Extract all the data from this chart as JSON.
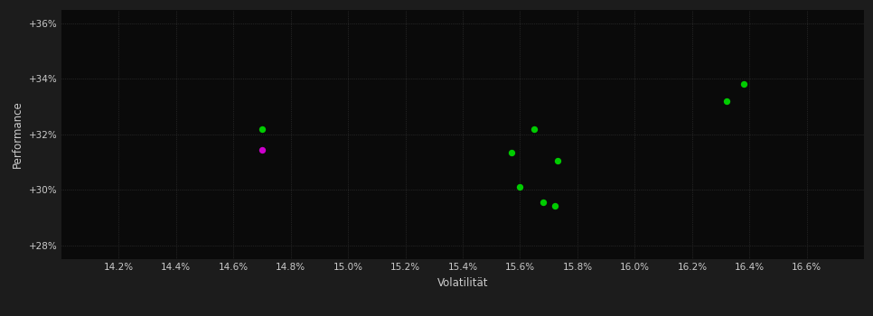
{
  "background_color": "#1c1c1c",
  "plot_bg_color": "#0a0a0a",
  "grid_color": "#3a3a3a",
  "text_color": "#cccccc",
  "xlabel": "Volatilität",
  "ylabel": "Performance",
  "xlim": [
    14.0,
    16.8
  ],
  "ylim": [
    27.5,
    36.5
  ],
  "xticks": [
    14.2,
    14.4,
    14.6,
    14.8,
    15.0,
    15.2,
    15.4,
    15.6,
    15.8,
    16.0,
    16.2,
    16.4,
    16.6
  ],
  "yticks": [
    28,
    30,
    32,
    34,
    36
  ],
  "points_green": [
    [
      14.7,
      32.2
    ],
    [
      15.65,
      32.2
    ],
    [
      15.57,
      31.35
    ],
    [
      15.73,
      31.05
    ],
    [
      15.6,
      30.1
    ],
    [
      15.68,
      29.55
    ],
    [
      15.72,
      29.42
    ],
    [
      16.32,
      33.2
    ],
    [
      16.38,
      33.82
    ]
  ],
  "points_magenta": [
    [
      14.7,
      31.45
    ]
  ],
  "marker_size": 28,
  "green_color": "#00cc00",
  "magenta_color": "#cc00cc"
}
